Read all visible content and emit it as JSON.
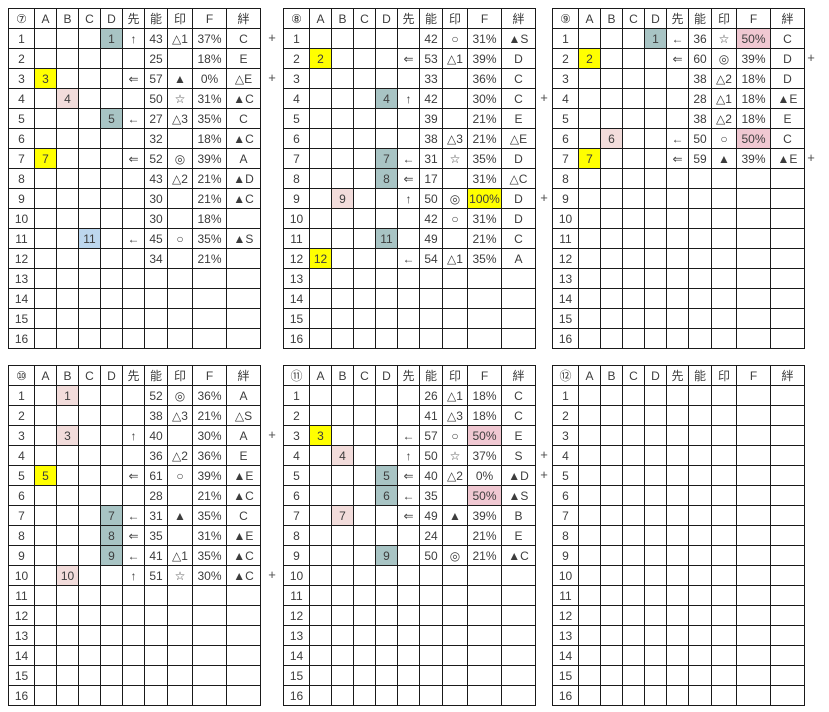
{
  "plus_label": "+",
  "columns": [
    "A",
    "B",
    "C",
    "D",
    "先",
    "能",
    "印",
    "F",
    "絆"
  ],
  "colors": {
    "highlight_yellow": "#ffff00",
    "highlight_pink": "#f2dcdb",
    "highlight_teal": "#a8c4c4",
    "highlight_blue": "#bdd7ee",
    "highlight_f_pink": "#f0c8d2",
    "gridline": "#1a1a1a"
  },
  "tables": [
    {
      "id": "7",
      "label": "⑦",
      "plus_rows": [
        1,
        3
      ],
      "rows": [
        {
          "num": "1",
          "d": "1",
          "d_hl": "teal",
          "saki": "↑",
          "nou": "43",
          "in": "△1",
          "f": "37%",
          "kiz": "C"
        },
        {
          "num": "2",
          "nou": "25",
          "f": "18%",
          "kiz": "E"
        },
        {
          "num": "3",
          "a": "3",
          "a_hl": "yellow",
          "saki": "⇐",
          "nou": "57",
          "in": "▲",
          "f": "0%",
          "kiz": "△E"
        },
        {
          "num": "4",
          "b": "4",
          "b_hl": "pink",
          "nou": "50",
          "in": "☆",
          "f": "31%",
          "kiz": "▲C"
        },
        {
          "num": "5",
          "d": "5",
          "d_hl": "teal",
          "saki": "←",
          "nou": "27",
          "in": "△3",
          "f": "35%",
          "kiz": "C"
        },
        {
          "num": "6",
          "nou": "32",
          "f": "18%",
          "kiz": "▲C"
        },
        {
          "num": "7",
          "a": "7",
          "a_hl": "yellow",
          "saki": "⇐",
          "nou": "52",
          "in": "◎",
          "f": "39%",
          "kiz": "A"
        },
        {
          "num": "8",
          "nou": "43",
          "in": "△2",
          "f": "21%",
          "kiz": "▲D"
        },
        {
          "num": "9",
          "nou": "30",
          "f": "21%",
          "kiz": "▲C"
        },
        {
          "num": "10",
          "nou": "30",
          "f": "18%"
        },
        {
          "num": "11",
          "c": "11",
          "c_hl": "blue",
          "saki": "←",
          "nou": "45",
          "in": "○",
          "f": "35%",
          "kiz": "▲S"
        },
        {
          "num": "12",
          "nou": "34",
          "f": "21%"
        },
        {
          "num": "13"
        },
        {
          "num": "14"
        },
        {
          "num": "15"
        },
        {
          "num": "16"
        }
      ]
    },
    {
      "id": "8",
      "label": "⑧",
      "plus_rows": [
        4,
        9
      ],
      "rows": [
        {
          "num": "1",
          "nou": "42",
          "in": "○",
          "f": "31%",
          "kiz": "▲S"
        },
        {
          "num": "2",
          "a": "2",
          "a_hl": "yellow",
          "saki": "⇐",
          "nou": "53",
          "in": "△1",
          "f": "39%",
          "kiz": "D"
        },
        {
          "num": "3",
          "nou": "33",
          "f": "36%",
          "kiz": "C"
        },
        {
          "num": "4",
          "d": "4",
          "d_hl": "teal",
          "saki": "↑",
          "nou": "42",
          "f": "30%",
          "kiz": "C"
        },
        {
          "num": "5",
          "nou": "39",
          "f": "21%",
          "kiz": "E"
        },
        {
          "num": "6",
          "nou": "38",
          "in": "△3",
          "f": "21%",
          "kiz": "△E"
        },
        {
          "num": "7",
          "d": "7",
          "d_hl": "teal",
          "saki": "←",
          "nou": "31",
          "in": "☆",
          "f": "35%",
          "kiz": "D"
        },
        {
          "num": "8",
          "d": "8",
          "d_hl": "teal",
          "saki": "⇐",
          "nou": "17",
          "f": "31%",
          "kiz": "△C"
        },
        {
          "num": "9",
          "b": "9",
          "b_hl": "pink",
          "saki": "↑",
          "nou": "50",
          "in": "◎",
          "f": "100%",
          "f_hl": "yellow",
          "kiz": "D"
        },
        {
          "num": "10",
          "nou": "42",
          "in": "○",
          "f": "31%",
          "kiz": "D"
        },
        {
          "num": "11",
          "d": "11",
          "d_hl": "teal",
          "nou": "49",
          "f": "21%",
          "kiz": "C"
        },
        {
          "num": "12",
          "a": "12",
          "a_hl": "yellow",
          "saki": "←",
          "nou": "54",
          "in": "△1",
          "f": "35%",
          "kiz": "A"
        },
        {
          "num": "13"
        },
        {
          "num": "14"
        },
        {
          "num": "15"
        },
        {
          "num": "16"
        }
      ]
    },
    {
      "id": "9",
      "label": "⑨",
      "plus_rows": [
        2,
        7
      ],
      "rows": [
        {
          "num": "1",
          "d": "1",
          "d_hl": "teal",
          "saki": "←",
          "nou": "36",
          "in": "☆",
          "f": "50%",
          "f_hl": "fpink",
          "kiz": "C"
        },
        {
          "num": "2",
          "a": "2",
          "a_hl": "yellow",
          "saki": "⇐",
          "nou": "60",
          "in": "◎",
          "f": "39%",
          "kiz": "D"
        },
        {
          "num": "3",
          "nou": "38",
          "in": "△2",
          "f": "18%",
          "kiz": "D"
        },
        {
          "num": "4",
          "nou": "28",
          "in": "△1",
          "f": "18%",
          "kiz": "▲E"
        },
        {
          "num": "5",
          "nou": "38",
          "in": "△2",
          "f": "18%",
          "kiz": "E"
        },
        {
          "num": "6",
          "b": "6",
          "b_hl": "pink",
          "saki": "←",
          "nou": "50",
          "in": "○",
          "f": "50%",
          "f_hl": "fpink",
          "kiz": "C"
        },
        {
          "num": "7",
          "a": "7",
          "a_hl": "yellow",
          "saki": "⇐",
          "nou": "59",
          "in": "▲",
          "f": "39%",
          "kiz": "▲E"
        },
        {
          "num": "8"
        },
        {
          "num": "9"
        },
        {
          "num": "10"
        },
        {
          "num": "11"
        },
        {
          "num": "12"
        },
        {
          "num": "13"
        },
        {
          "num": "14"
        },
        {
          "num": "15"
        },
        {
          "num": "16"
        }
      ]
    },
    {
      "id": "10",
      "label": "⑩",
      "plus_rows": [
        3,
        10
      ],
      "rows": [
        {
          "num": "1",
          "b": "1",
          "b_hl": "pink",
          "nou": "52",
          "in": "◎",
          "f": "36%",
          "kiz": "A"
        },
        {
          "num": "2",
          "nou": "38",
          "in": "△3",
          "f": "21%",
          "kiz": "△S"
        },
        {
          "num": "3",
          "b": "3",
          "b_hl": "pink",
          "saki": "↑",
          "nou": "40",
          "f": "30%",
          "kiz": "A"
        },
        {
          "num": "4",
          "nou": "36",
          "in": "△2",
          "f": "36%",
          "kiz": "E"
        },
        {
          "num": "5",
          "a": "5",
          "a_hl": "yellow",
          "saki": "⇐",
          "nou": "61",
          "in": "○",
          "f": "39%",
          "kiz": "▲E"
        },
        {
          "num": "6",
          "nou": "28",
          "f": "21%",
          "kiz": "▲C"
        },
        {
          "num": "7",
          "d": "7",
          "d_hl": "teal",
          "saki": "←",
          "nou": "31",
          "in": "▲",
          "f": "35%",
          "kiz": "C"
        },
        {
          "num": "8",
          "d": "8",
          "d_hl": "teal",
          "saki": "⇐",
          "nou": "35",
          "f": "31%",
          "kiz": "▲E"
        },
        {
          "num": "9",
          "d": "9",
          "d_hl": "teal",
          "saki": "←",
          "nou": "41",
          "in": "△1",
          "f": "35%",
          "kiz": "▲C"
        },
        {
          "num": "10",
          "b": "10",
          "b_hl": "pink",
          "saki": "↑",
          "nou": "51",
          "in": "☆",
          "f": "30%",
          "kiz": "▲C"
        },
        {
          "num": "11"
        },
        {
          "num": "12"
        },
        {
          "num": "13"
        },
        {
          "num": "14"
        },
        {
          "num": "15"
        },
        {
          "num": "16"
        }
      ]
    },
    {
      "id": "11",
      "label": "⑪",
      "plus_rows": [
        4,
        5
      ],
      "rows": [
        {
          "num": "1",
          "nou": "26",
          "in": "△1",
          "f": "18%",
          "kiz": "C"
        },
        {
          "num": "2",
          "nou": "41",
          "in": "△3",
          "f": "18%",
          "kiz": "C"
        },
        {
          "num": "3",
          "a": "3",
          "a_hl": "yellow",
          "saki": "←",
          "nou": "57",
          "in": "○",
          "f": "50%",
          "f_hl": "fpink",
          "kiz": "E"
        },
        {
          "num": "4",
          "b": "4",
          "b_hl": "pink",
          "saki": "↑",
          "nou": "50",
          "in": "☆",
          "f": "37%",
          "kiz": "S"
        },
        {
          "num": "5",
          "d": "5",
          "d_hl": "teal",
          "saki": "⇐",
          "nou": "40",
          "in": "△2",
          "f": "0%",
          "kiz": "▲D"
        },
        {
          "num": "6",
          "d": "6",
          "d_hl": "teal",
          "saki": "←",
          "nou": "35",
          "f": "50%",
          "f_hl": "fpink",
          "kiz": "▲S"
        },
        {
          "num": "7",
          "b": "7",
          "b_hl": "pink",
          "saki": "⇐",
          "nou": "49",
          "in": "▲",
          "f": "39%",
          "kiz": "B"
        },
        {
          "num": "8",
          "nou": "24",
          "f": "21%",
          "kiz": "E"
        },
        {
          "num": "9",
          "d": "9",
          "d_hl": "teal",
          "nou": "50",
          "in": "◎",
          "f": "21%",
          "kiz": "▲C"
        },
        {
          "num": "10"
        },
        {
          "num": "11"
        },
        {
          "num": "12"
        },
        {
          "num": "13"
        },
        {
          "num": "14"
        },
        {
          "num": "15"
        },
        {
          "num": "16"
        }
      ]
    },
    {
      "id": "12",
      "label": "⑫",
      "plus_rows": [],
      "rows": [
        {
          "num": "1"
        },
        {
          "num": "2"
        },
        {
          "num": "3"
        },
        {
          "num": "4"
        },
        {
          "num": "5"
        },
        {
          "num": "6"
        },
        {
          "num": "7"
        },
        {
          "num": "8"
        },
        {
          "num": "9"
        },
        {
          "num": "10"
        },
        {
          "num": "11"
        },
        {
          "num": "12"
        },
        {
          "num": "13"
        },
        {
          "num": "14"
        },
        {
          "num": "15"
        },
        {
          "num": "16"
        }
      ]
    }
  ]
}
